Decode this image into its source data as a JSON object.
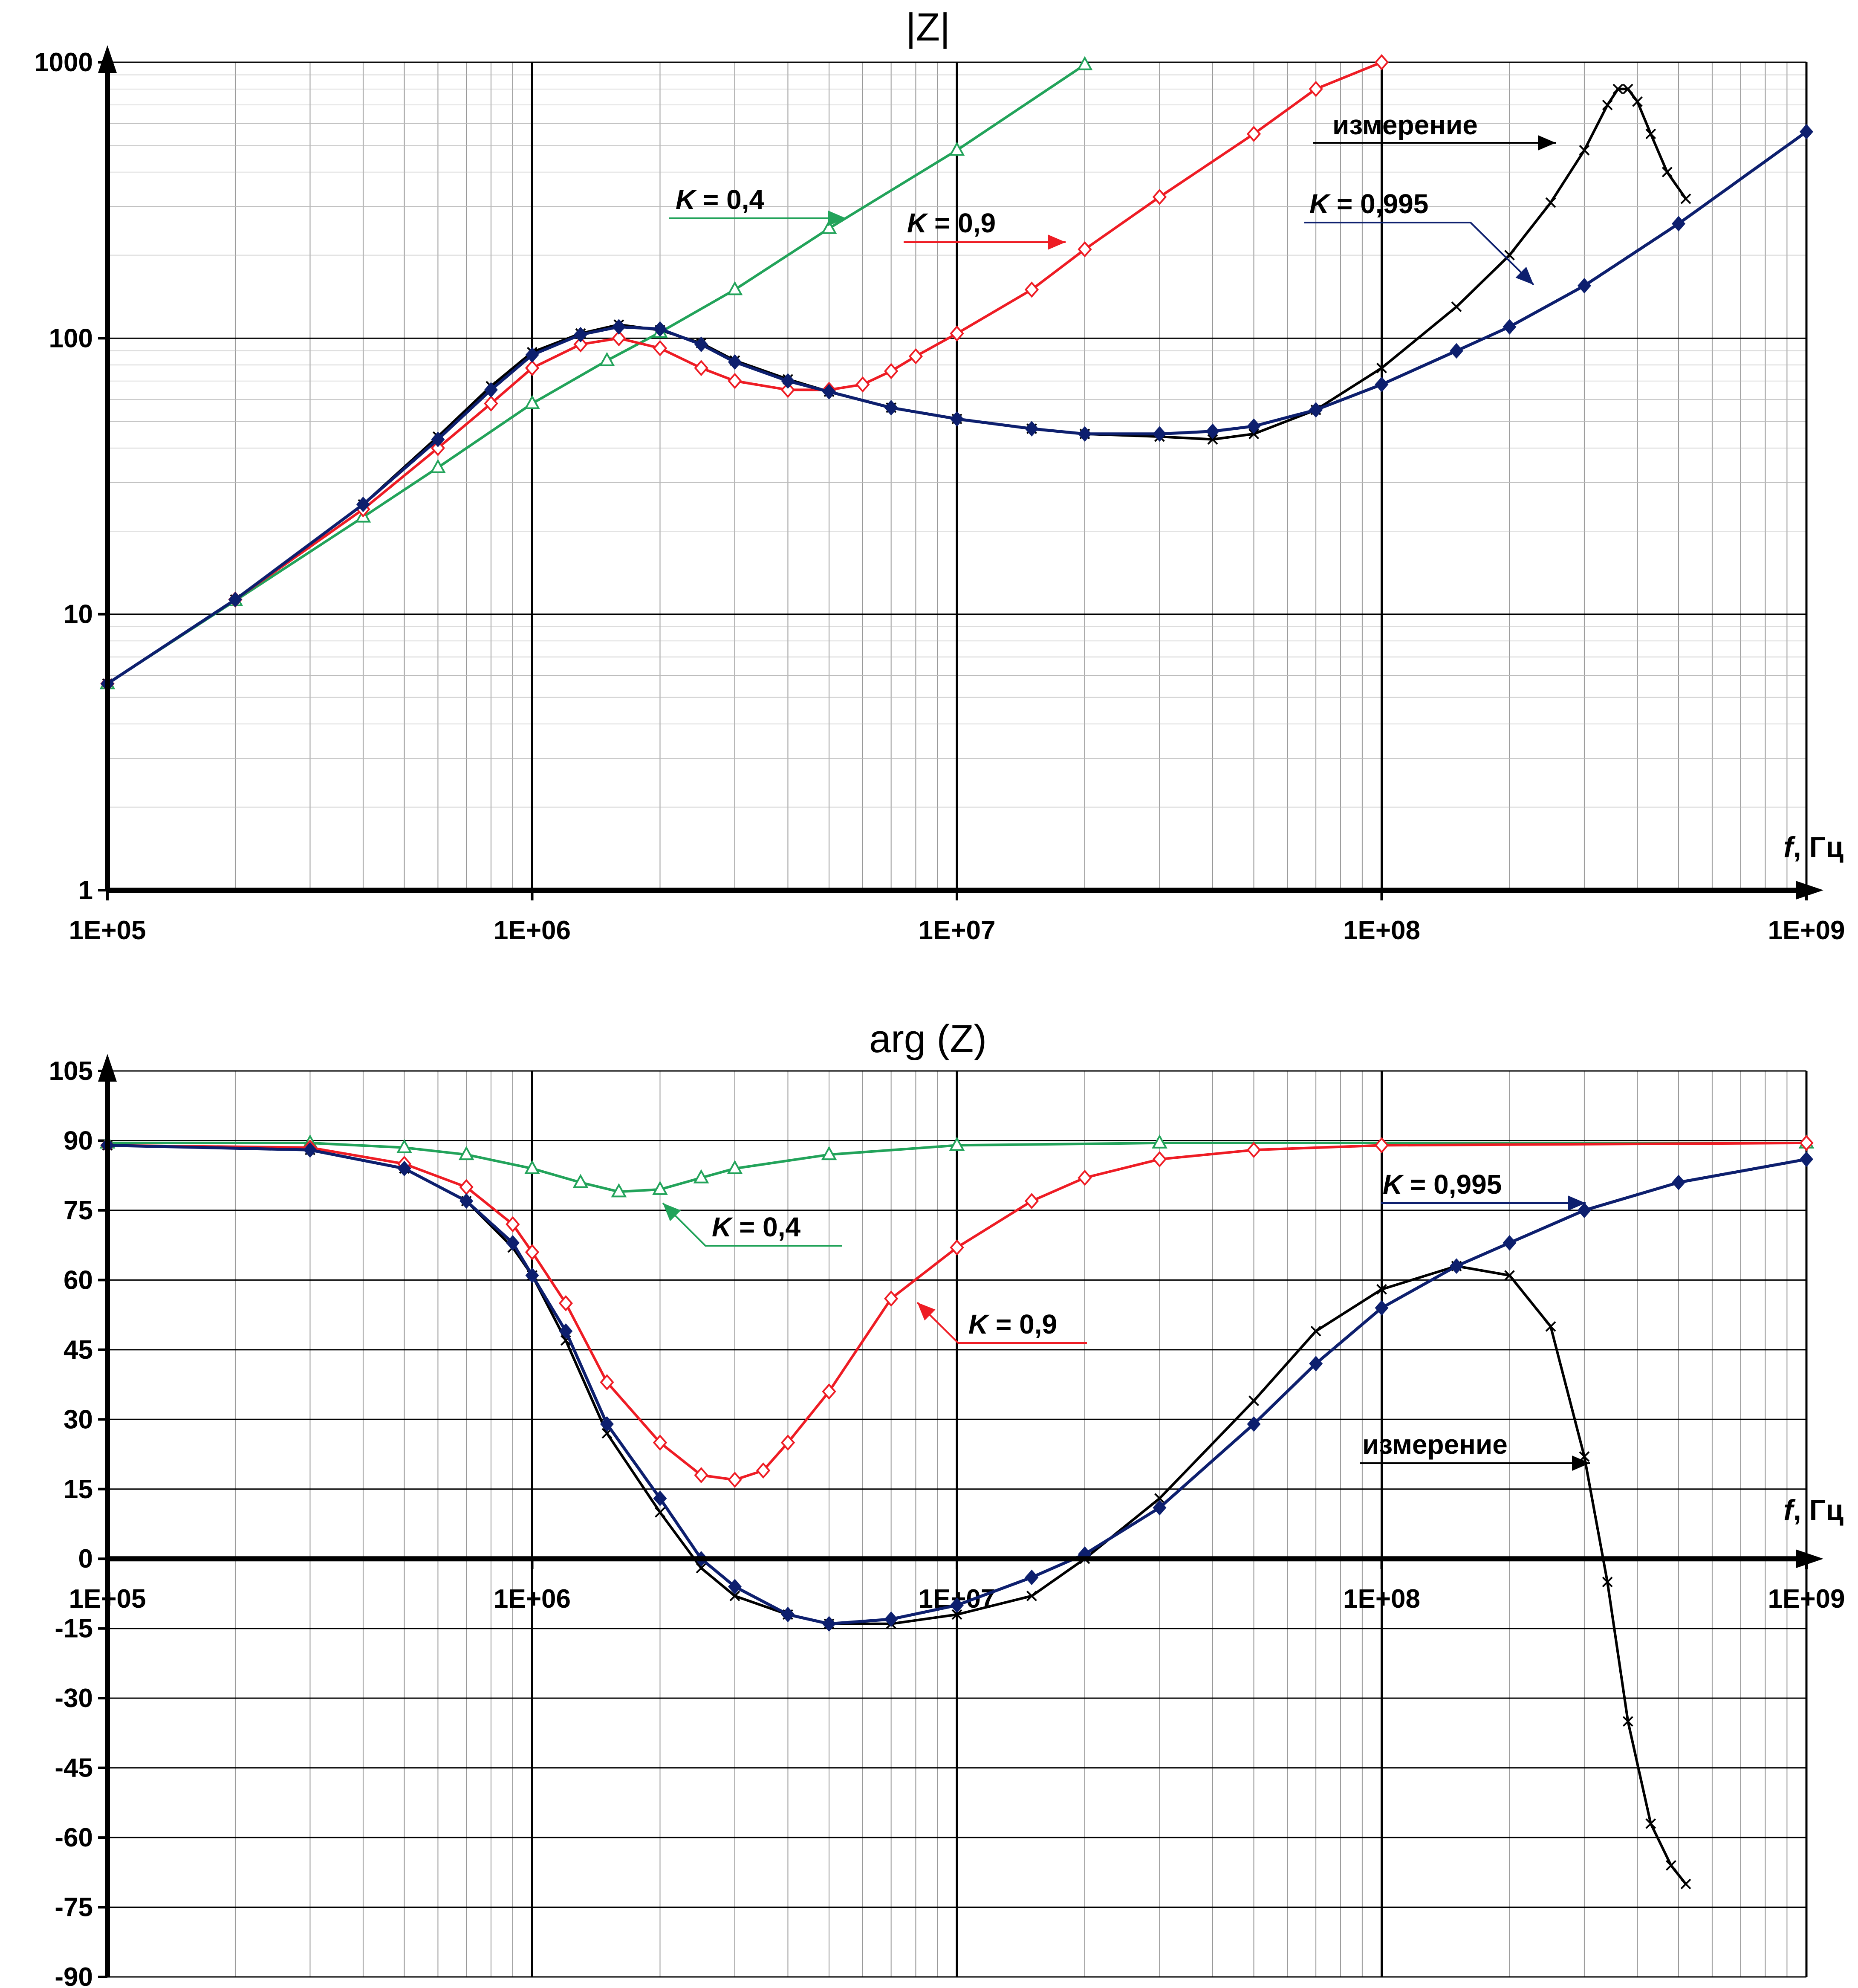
{
  "colors": {
    "measurement": "#000000",
    "k04": "#22a35a",
    "k09": "#ee1c24",
    "k0995": "#0d1f6e"
  },
  "chart_data": [
    {
      "type": "line",
      "title": "|Z|",
      "xscale": "log",
      "yscale": "log",
      "xlim": [
        100000,
        1000000000
      ],
      "ylim": [
        1,
        1000
      ],
      "xticks": [
        "1E+05",
        "1E+06",
        "1E+07",
        "1E+08",
        "1E+09"
      ],
      "yticks": [
        "1",
        "10",
        "100",
        "1000"
      ],
      "xlabel": {
        "italic": "f",
        "rest": ", Гц"
      },
      "annotations": [
        {
          "key": "k04",
          "prefix": "K",
          "text": " = 0,4"
        },
        {
          "key": "k09",
          "prefix": "K",
          "text": " = 0,9"
        },
        {
          "key": "k0995",
          "prefix": "K",
          "text": " = 0,995"
        },
        {
          "key": "measurement",
          "prefix": "",
          "text": "измерение"
        }
      ],
      "series": [
        {
          "key": "k04",
          "marker": "triangle-open",
          "points": [
            [
              100000,
              5.6
            ],
            [
              200000,
              11.2
            ],
            [
              400000,
              22.5
            ],
            [
              600000,
              34
            ],
            [
              1000000,
              58
            ],
            [
              1500000,
              83
            ],
            [
              2000000,
              105
            ],
            [
              3000000,
              150
            ],
            [
              5000000,
              250
            ],
            [
              10000000,
              480
            ],
            [
              20000000,
              980
            ]
          ]
        },
        {
          "key": "k09",
          "marker": "diamond-open",
          "points": [
            [
              100000,
              5.6
            ],
            [
              200000,
              11.3
            ],
            [
              400000,
              24
            ],
            [
              600000,
              40
            ],
            [
              800000,
              58
            ],
            [
              1000000,
              78
            ],
            [
              1300000,
              95
            ],
            [
              1600000,
              100
            ],
            [
              2000000,
              92
            ],
            [
              2500000,
              78
            ],
            [
              3000000,
              70
            ],
            [
              4000000,
              65
            ],
            [
              5000000,
              65
            ],
            [
              6000000,
              68
            ],
            [
              7000000,
              76
            ],
            [
              8000000,
              86
            ],
            [
              10000000,
              104
            ],
            [
              15000000,
              150
            ],
            [
              20000000,
              210
            ],
            [
              30000000,
              325
            ],
            [
              50000000,
              550
            ],
            [
              70000000,
              800
            ],
            [
              100000000,
              1000
            ]
          ]
        },
        {
          "key": "k0995",
          "marker": "diamond-filled",
          "points": [
            [
              100000,
              5.6
            ],
            [
              200000,
              11.3
            ],
            [
              400000,
              25
            ],
            [
              600000,
              43
            ],
            [
              800000,
              65
            ],
            [
              1000000,
              87
            ],
            [
              1300000,
              103
            ],
            [
              1600000,
              110
            ],
            [
              2000000,
              108
            ],
            [
              2500000,
              95
            ],
            [
              3000000,
              82
            ],
            [
              4000000,
              70
            ],
            [
              5000000,
              64
            ],
            [
              7000000,
              56
            ],
            [
              10000000,
              51
            ],
            [
              15000000,
              47
            ],
            [
              20000000,
              45
            ],
            [
              30000000,
              45
            ],
            [
              40000000,
              46
            ],
            [
              50000000,
              48
            ],
            [
              70000000,
              55
            ],
            [
              100000000,
              68
            ],
            [
              150000000,
              90
            ],
            [
              200000000,
              110
            ],
            [
              300000000,
              155
            ],
            [
              500000000,
              260
            ],
            [
              1000000000,
              560
            ]
          ]
        },
        {
          "key": "measurement",
          "marker": "x",
          "points": [
            [
              100000,
              5.6
            ],
            [
              200000,
              11.3
            ],
            [
              400000,
              25
            ],
            [
              600000,
              44
            ],
            [
              800000,
              67
            ],
            [
              1000000,
              89
            ],
            [
              1300000,
              104
            ],
            [
              1600000,
              112
            ],
            [
              2000000,
              107
            ],
            [
              2500000,
              96
            ],
            [
              3000000,
              83
            ],
            [
              4000000,
              71
            ],
            [
              5000000,
              64
            ],
            [
              7000000,
              56
            ],
            [
              10000000,
              51
            ],
            [
              15000000,
              47
            ],
            [
              20000000,
              45
            ],
            [
              30000000,
              44
            ],
            [
              40000000,
              43
            ],
            [
              50000000,
              45
            ],
            [
              70000000,
              55
            ],
            [
              100000000,
              78
            ],
            [
              150000000,
              130
            ],
            [
              200000000,
              200
            ],
            [
              250000000,
              310
            ],
            [
              300000000,
              480
            ],
            [
              340000000,
              700
            ],
            [
              360000000,
              800
            ],
            [
              380000000,
              800
            ],
            [
              400000000,
              720
            ],
            [
              430000000,
              550
            ],
            [
              470000000,
              400
            ],
            [
              520000000,
              320
            ]
          ]
        }
      ]
    },
    {
      "type": "line",
      "title": "arg (Z)",
      "xscale": "log",
      "xlim": [
        100000,
        1000000000
      ],
      "ylim": [
        -90,
        105
      ],
      "xticks": [
        "1E+05",
        "1E+06",
        "1E+07",
        "1E+08",
        "1E+09"
      ],
      "yticks": [
        "-90",
        "-75",
        "-60",
        "-45",
        "-30",
        "-15",
        "0",
        "15",
        "30",
        "45",
        "60",
        "75",
        "90",
        "105"
      ],
      "xlabel": {
        "italic": "f",
        "rest": ", Гц"
      },
      "annotations": [
        {
          "key": "k04",
          "prefix": "K",
          "text": " = 0,4"
        },
        {
          "key": "k09",
          "prefix": "K",
          "text": " = 0,9"
        },
        {
          "key": "k0995",
          "prefix": "K",
          "text": " = 0,995"
        },
        {
          "key": "measurement",
          "prefix": "",
          "text": "измерение"
        }
      ],
      "series": [
        {
          "key": "k04",
          "marker": "triangle-open",
          "points": [
            [
              100000,
              89.5
            ],
            [
              300000,
              89.5
            ],
            [
              500000,
              88.5
            ],
            [
              700000,
              87
            ],
            [
              1000000,
              84
            ],
            [
              1300000,
              81
            ],
            [
              1600000,
              79
            ],
            [
              2000000,
              79.5
            ],
            [
              2500000,
              82
            ],
            [
              3000000,
              84
            ],
            [
              5000000,
              87
            ],
            [
              10000000,
              89
            ],
            [
              30000000,
              89.5
            ],
            [
              1000000000,
              89.5
            ]
          ]
        },
        {
          "key": "k09",
          "marker": "diamond-open",
          "points": [
            [
              100000,
              89
            ],
            [
              300000,
              88.5
            ],
            [
              500000,
              85
            ],
            [
              700000,
              80
            ],
            [
              900000,
              72
            ],
            [
              1000000,
              66
            ],
            [
              1200000,
              55
            ],
            [
              1500000,
              38
            ],
            [
              2000000,
              25
            ],
            [
              2500000,
              18
            ],
            [
              3000000,
              17
            ],
            [
              3500000,
              19
            ],
            [
              4000000,
              25
            ],
            [
              5000000,
              36
            ],
            [
              7000000,
              56
            ],
            [
              10000000,
              67
            ],
            [
              15000000,
              77
            ],
            [
              20000000,
              82
            ],
            [
              30000000,
              86
            ],
            [
              50000000,
              88
            ],
            [
              100000000,
              89
            ],
            [
              1000000000,
              89.5
            ]
          ]
        },
        {
          "key": "k0995",
          "marker": "diamond-filled",
          "points": [
            [
              100000,
              89
            ],
            [
              300000,
              88
            ],
            [
              500000,
              84
            ],
            [
              700000,
              77
            ],
            [
              900000,
              68
            ],
            [
              1000000,
              61
            ],
            [
              1200000,
              49
            ],
            [
              1500000,
              29
            ],
            [
              2000000,
              13
            ],
            [
              2500000,
              0
            ],
            [
              3000000,
              -6
            ],
            [
              4000000,
              -12
            ],
            [
              5000000,
              -14
            ],
            [
              7000000,
              -13
            ],
            [
              10000000,
              -10
            ],
            [
              15000000,
              -4
            ],
            [
              20000000,
              1
            ],
            [
              30000000,
              11
            ],
            [
              50000000,
              29
            ],
            [
              70000000,
              42
            ],
            [
              100000000,
              54
            ],
            [
              150000000,
              63
            ],
            [
              200000000,
              68
            ],
            [
              300000000,
              75
            ],
            [
              500000000,
              81
            ],
            [
              1000000000,
              86
            ]
          ]
        },
        {
          "key": "measurement",
          "marker": "x",
          "points": [
            [
              100000,
              89
            ],
            [
              300000,
              88
            ],
            [
              500000,
              84
            ],
            [
              700000,
              77
            ],
            [
              900000,
              67
            ],
            [
              1000000,
              61
            ],
            [
              1200000,
              47
            ],
            [
              1500000,
              27
            ],
            [
              2000000,
              10
            ],
            [
              2500000,
              -2
            ],
            [
              3000000,
              -8
            ],
            [
              4000000,
              -12
            ],
            [
              5000000,
              -14
            ],
            [
              7000000,
              -14
            ],
            [
              10000000,
              -12
            ],
            [
              15000000,
              -8
            ],
            [
              20000000,
              0
            ],
            [
              30000000,
              13
            ],
            [
              50000000,
              34
            ],
            [
              70000000,
              49
            ],
            [
              100000000,
              58
            ],
            [
              150000000,
              63
            ],
            [
              200000000,
              61
            ],
            [
              250000000,
              50
            ],
            [
              300000000,
              22
            ],
            [
              340000000,
              -5
            ],
            [
              380000000,
              -35
            ],
            [
              430000000,
              -57
            ],
            [
              480000000,
              -66
            ],
            [
              520000000,
              -70
            ]
          ]
        }
      ]
    }
  ]
}
